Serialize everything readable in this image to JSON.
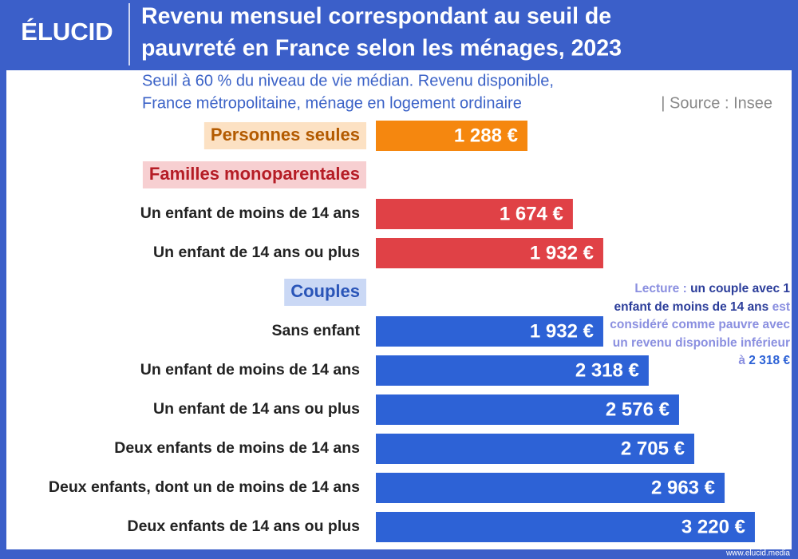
{
  "logo": "ÉLUCID",
  "footer": "www.elucid.media",
  "chart_data": {
    "type": "bar",
    "orientation": "horizontal",
    "title": [
      "Revenu mensuel correspondant au seuil de",
      "pauvreté en France selon les ménages, 2023"
    ],
    "subtitle": [
      "Seuil à 60 % du niveau de vie médian. Revenu disponible,",
      "France métropolitaine, ménage en logement ordinaire"
    ],
    "source": "| Source : Insee",
    "annotation": [
      "Lecture : ",
      "un couple avec 1 enfant de moins de 14 ans",
      " est considéré comme pauvre avec un revenu disponible inférieur à ",
      "2 318 €"
    ],
    "groups": [
      {
        "name": "Personnes seules",
        "color": "#f5870f",
        "header_color": "#b35a00",
        "categories": [
          null
        ],
        "values": [
          1288
        ],
        "value_labels": [
          "1 288 €"
        ]
      },
      {
        "name": "Familles monoparentales",
        "color": "#e04146",
        "header_color": "#b51d26",
        "categories": [
          "Un enfant de moins de 14 ans",
          "Un enfant de 14 ans ou plus"
        ],
        "values": [
          1674,
          1932
        ],
        "value_labels": [
          "1 674 €",
          "1 932 €"
        ]
      },
      {
        "name": "Couples",
        "color": "#2d62d6",
        "header_color": "#2a55b8",
        "categories": [
          "Sans enfant",
          "Un enfant de moins de 14 ans",
          "Un enfant de 14 ans ou plus",
          "Deux enfants de moins de 14 ans",
          "Deux enfants, dont un de moins de 14 ans",
          "Deux enfants de 14 ans ou plus"
        ],
        "values": [
          1932,
          2318,
          2576,
          2705,
          2963,
          3220
        ],
        "value_labels": [
          "1 932 €",
          "2 318 €",
          "2 576 €",
          "2 705 €",
          "2 963 €",
          "3 220 €"
        ]
      }
    ]
  }
}
